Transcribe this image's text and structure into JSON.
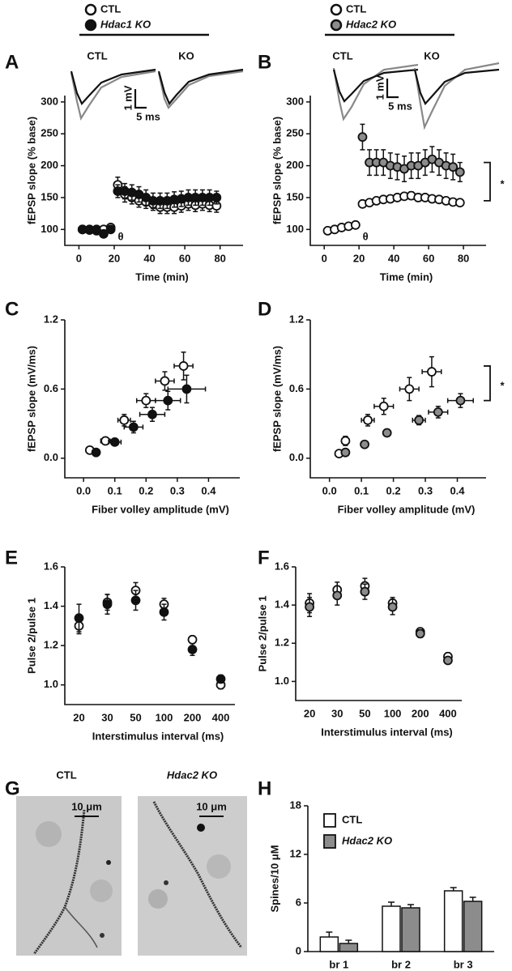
{
  "chart_data": [
    {
      "type": "scatter",
      "panel": "A",
      "x_label": "Time (min)",
      "y_label": "fEPSP slope (% base)",
      "xlim": [
        -8,
        93
      ],
      "ylim": [
        75,
        310
      ],
      "xticks": [
        0,
        20,
        40,
        60,
        80
      ],
      "yticks": [
        100,
        150,
        200,
        250,
        300
      ],
      "annotations": [
        "θ"
      ],
      "trace_labels": [
        "CTL",
        "KO"
      ],
      "scale_labels": [
        "1 mV",
        "5 ms"
      ],
      "series": [
        {
          "name": "CTL",
          "color": "#ffffff",
          "x": [
            2,
            6,
            10,
            14,
            18,
            22,
            26,
            30,
            34,
            38,
            42,
            46,
            50,
            54,
            58,
            62,
            66,
            70,
            74,
            78
          ],
          "values": [
            100,
            100,
            100,
            100,
            103,
            170,
            155,
            150,
            145,
            143,
            140,
            135,
            135,
            135,
            137,
            140,
            138,
            140,
            138,
            137
          ],
          "yerr": [
            5,
            5,
            5,
            5,
            5,
            12,
            12,
            10,
            10,
            10,
            10,
            10,
            10,
            10,
            10,
            10,
            10,
            10,
            10,
            10
          ]
        },
        {
          "name": "Hdac1 KO",
          "color": "#111111",
          "x": [
            2,
            6,
            10,
            14,
            18,
            22,
            26,
            30,
            34,
            38,
            42,
            46,
            50,
            54,
            58,
            62,
            66,
            70,
            74,
            78
          ],
          "values": [
            100,
            99,
            98,
            93,
            100,
            160,
            160,
            158,
            155,
            150,
            145,
            145,
            145,
            147,
            148,
            150,
            150,
            150,
            150,
            150
          ],
          "yerr": [
            5,
            5,
            5,
            5,
            5,
            10,
            12,
            12,
            12,
            12,
            12,
            12,
            12,
            12,
            12,
            12,
            12,
            12,
            12,
            10
          ]
        }
      ]
    },
    {
      "type": "scatter",
      "panel": "B",
      "x_label": "Time (min)",
      "y_label": "fEPSP slope (% base)",
      "xlim": [
        -8,
        93
      ],
      "ylim": [
        75,
        310
      ],
      "xticks": [
        0,
        20,
        40,
        60,
        80
      ],
      "yticks": [
        100,
        150,
        200,
        250,
        300
      ],
      "annotations": [
        "θ",
        "*"
      ],
      "trace_labels": [
        "CTL",
        "KO"
      ],
      "scale_labels": [
        "1 mV",
        "5 ms"
      ],
      "series": [
        {
          "name": "CTL",
          "color": "#ffffff",
          "x": [
            2,
            6,
            10,
            14,
            18,
            22,
            26,
            30,
            34,
            38,
            42,
            46,
            50,
            54,
            58,
            62,
            66,
            70,
            74,
            78
          ],
          "values": [
            98,
            100,
            103,
            105,
            107,
            140,
            142,
            145,
            147,
            148,
            150,
            152,
            153,
            150,
            150,
            148,
            147,
            145,
            143,
            142
          ],
          "yerr": [
            5,
            5,
            5,
            5,
            5,
            5,
            5,
            5,
            5,
            5,
            5,
            5,
            6,
            6,
            5,
            5,
            5,
            5,
            5,
            5
          ]
        },
        {
          "name": "Hdac2 KO",
          "color": "#8c8c8c",
          "x": [
            22,
            26,
            30,
            34,
            38,
            42,
            46,
            50,
            54,
            58,
            62,
            66,
            70,
            74,
            78
          ],
          "values": [
            245,
            205,
            205,
            205,
            200,
            198,
            195,
            200,
            200,
            205,
            210,
            205,
            200,
            198,
            190
          ],
          "yerr": [
            20,
            20,
            20,
            20,
            20,
            20,
            20,
            20,
            20,
            20,
            20,
            20,
            20,
            20,
            15
          ]
        }
      ]
    },
    {
      "type": "scatter",
      "panel": "C",
      "x_label": "Fiber volley amplitude (mV)",
      "y_label": "fEPSP slope (mV/ms)",
      "xlim": [
        -0.06,
        0.5
      ],
      "ylim": [
        -0.17,
        1.2
      ],
      "xticks": [
        {
          "value": 0,
          "label": "0.0"
        },
        0.1,
        0.2,
        0.3,
        0.4
      ],
      "yticks": [
        {
          "value": 0,
          "label": "0.0"
        },
        0.6,
        1.2
      ],
      "series": [
        {
          "color": "#ffffff",
          "x": [
            0.02,
            0.07,
            0.13,
            0.2,
            0.26,
            0.32
          ],
          "values": [
            0.07,
            0.15,
            0.33,
            0.5,
            0.67,
            0.8
          ],
          "xerr": [
            0.01,
            0.015,
            0.02,
            0.03,
            0.03,
            0.03
          ],
          "yerr": [
            0.02,
            0.03,
            0.05,
            0.06,
            0.08,
            0.12
          ]
        },
        {
          "color": "#111111",
          "x": [
            0.04,
            0.1,
            0.16,
            0.22,
            0.27,
            0.33
          ],
          "values": [
            0.05,
            0.14,
            0.27,
            0.38,
            0.5,
            0.6
          ],
          "xerr": [
            0.01,
            0.02,
            0.03,
            0.04,
            0.04,
            0.06
          ],
          "yerr": [
            0.02,
            0.03,
            0.05,
            0.06,
            0.08,
            0.12
          ]
        }
      ]
    },
    {
      "type": "scatter",
      "panel": "D",
      "x_label": "Fiber volley amplitude (mV)",
      "y_label": "fEPSP slope (mV/ms)",
      "xlim": [
        -0.06,
        0.49
      ],
      "ylim": [
        -0.17,
        1.2
      ],
      "xticks": [
        {
          "value": 0,
          "label": "0.0"
        },
        0.1,
        0.2,
        0.3,
        0.4
      ],
      "yticks": [
        {
          "value": 0,
          "label": "0.0"
        },
        0.6,
        1.2
      ],
      "annotations": [
        "*"
      ],
      "series": [
        {
          "color": "#ffffff",
          "x": [
            0.03,
            0.05,
            0.12,
            0.17,
            0.25,
            0.32
          ],
          "values": [
            0.04,
            0.15,
            0.33,
            0.45,
            0.6,
            0.75
          ],
          "xerr": [
            0.01,
            0.01,
            0.02,
            0.03,
            0.03,
            0.03
          ],
          "yerr": [
            0.02,
            0.04,
            0.05,
            0.07,
            0.1,
            0.13
          ]
        },
        {
          "color": "#8c8c8c",
          "x": [
            0.05,
            0.11,
            0.18,
            0.28,
            0.34,
            0.41
          ],
          "values": [
            0.05,
            0.12,
            0.22,
            0.33,
            0.4,
            0.5
          ],
          "xerr": [
            0.01,
            0.01,
            0.01,
            0.02,
            0.03,
            0.04
          ],
          "yerr": [
            0.02,
            0.02,
            0.03,
            0.04,
            0.05,
            0.06
          ]
        }
      ]
    },
    {
      "type": "dot",
      "panel": "E",
      "x_label": "Interstimulus interval (ms)",
      "y_label": "Pulse 2/pulse 1",
      "categories": [
        "20",
        "30",
        "50",
        "100",
        "200",
        "400"
      ],
      "ylim": [
        0.9,
        1.6
      ],
      "yticks": [
        {
          "value": 1,
          "label": "1.0"
        },
        1.2,
        1.4,
        1.6
      ],
      "series": [
        {
          "color": "#ffffff",
          "values": [
            1.3,
            1.42,
            1.48,
            1.41,
            1.23,
            1.0
          ],
          "yerr": [
            0.04,
            0.04,
            0.04,
            0.03,
            0.02,
            0.02
          ]
        },
        {
          "color": "#111111",
          "values": [
            1.34,
            1.41,
            1.43,
            1.37,
            1.18,
            1.03
          ],
          "yerr": [
            0.07,
            0.05,
            0.05,
            0.04,
            0.03,
            0.02
          ]
        }
      ]
    },
    {
      "type": "dot",
      "panel": "F",
      "x_label": "Interstimulus interval (ms)",
      "y_label": "Pulse 2/pulse 1",
      "categories": [
        "20",
        "30",
        "50",
        "100",
        "200",
        "400"
      ],
      "ylim": [
        0.9,
        1.6
      ],
      "yticks": [
        {
          "value": 1,
          "label": "1.0"
        },
        1.2,
        1.4,
        1.6
      ],
      "series": [
        {
          "color": "#ffffff",
          "values": [
            1.41,
            1.48,
            1.5,
            1.41,
            1.26,
            1.13
          ],
          "yerr": [
            0.05,
            0.04,
            0.04,
            0.03,
            0.02,
            0.02
          ]
        },
        {
          "color": "#8c8c8c",
          "values": [
            1.39,
            1.45,
            1.47,
            1.39,
            1.25,
            1.11
          ],
          "yerr": [
            0.05,
            0.05,
            0.04,
            0.04,
            0.02,
            0.01
          ]
        }
      ]
    },
    {
      "type": "image",
      "panel": "G",
      "labels": [
        "CTL",
        "Hdac2 KO"
      ],
      "scale_labels": [
        "10 μm",
        "10 μm"
      ]
    },
    {
      "type": "bar",
      "panel": "H",
      "y_label": "Spines/10 μM",
      "categories": [
        "br 1",
        "br 2",
        "br 3"
      ],
      "ylim": [
        0,
        18
      ],
      "yticks": [
        0,
        6,
        12,
        18
      ],
      "series": [
        {
          "name": "CTL",
          "color": "#ffffff",
          "values": [
            1.8,
            5.6,
            7.5
          ],
          "yerr": [
            0.6,
            0.5,
            0.4
          ]
        },
        {
          "name": "Hdac2 KO",
          "color": "#8c8c8c",
          "values": [
            1.0,
            5.4,
            6.2
          ],
          "yerr": [
            0.4,
            0.4,
            0.5
          ]
        }
      ]
    }
  ]
}
